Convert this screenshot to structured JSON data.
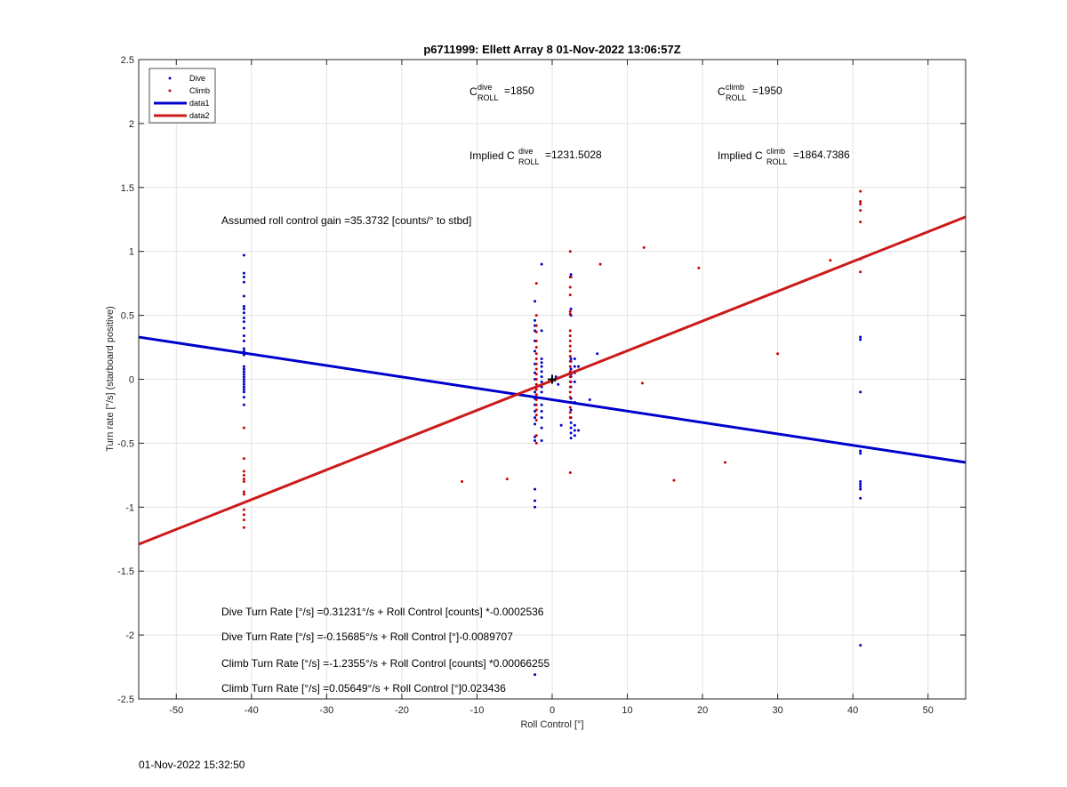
{
  "figure": {
    "timestamp": "01-Nov-2022 15:32:50"
  },
  "chart_data": {
    "type": "scatter",
    "title": "p6711999: Ellett Array 8 01-Nov-2022 13:06:57Z",
    "xlabel": "Roll Control [°]",
    "ylabel": "Turn rate [°/s] (starboard positive)",
    "xlim": [
      -55,
      55
    ],
    "ylim": [
      -2.5,
      2.5
    ],
    "xticks": [
      -50,
      -40,
      -30,
      -20,
      -10,
      0,
      10,
      20,
      30,
      40,
      50
    ],
    "yticks": [
      -2.5,
      -2,
      -1.5,
      -1,
      -0.5,
      0,
      0.5,
      1,
      1.5,
      2,
      2.5
    ],
    "xtick_labels": [
      "-50",
      "-40",
      "-30",
      "-20",
      "-10",
      "0",
      "10",
      "20",
      "30",
      "40",
      "50"
    ],
    "ytick_labels": [
      "-2.5",
      "-2",
      "-1.5",
      "-1",
      "-0.5",
      "0",
      "0.5",
      "1",
      "1.5",
      "2",
      "2.5"
    ],
    "grid": true,
    "legend": {
      "position": "top-left",
      "entries": [
        {
          "label": "Dive",
          "style": "dot",
          "color": "#0000cc"
        },
        {
          "label": "Climb",
          "style": "dot",
          "color": "#cc0000"
        },
        {
          "label": "data1",
          "style": "line",
          "color": "#0000cc"
        },
        {
          "label": "data2",
          "style": "line",
          "color": "#cc1a1a"
        }
      ]
    },
    "series": [
      {
        "name": "Dive",
        "kind": "points",
        "color": "#0000cc",
        "points": [
          [
            -41,
            0.97
          ],
          [
            -41,
            0.83
          ],
          [
            -41,
            0.8
          ],
          [
            -41,
            0.76
          ],
          [
            -41,
            0.65
          ],
          [
            -41,
            0.57
          ],
          [
            -41,
            0.55
          ],
          [
            -41,
            0.52
          ],
          [
            -41,
            0.48
          ],
          [
            -41,
            0.45
          ],
          [
            -41,
            0.4
          ],
          [
            -41,
            0.34
          ],
          [
            -41,
            0.3
          ],
          [
            -41,
            0.24
          ],
          [
            -41,
            0.22
          ],
          [
            -41,
            0.19
          ],
          [
            -41,
            0.1
          ],
          [
            -41,
            0.08
          ],
          [
            -41,
            0.06
          ],
          [
            -41,
            0.04
          ],
          [
            -41,
            0.02
          ],
          [
            -41,
            0.0
          ],
          [
            -41,
            -0.02
          ],
          [
            -41,
            -0.04
          ],
          [
            -41,
            -0.06
          ],
          [
            -41,
            -0.08
          ],
          [
            -41,
            -0.1
          ],
          [
            -41,
            -0.14
          ],
          [
            -41,
            -0.2
          ],
          [
            -2.3,
            0.61
          ],
          [
            -2.3,
            0.46
          ],
          [
            -2.3,
            0.42
          ],
          [
            -2.3,
            0.38
          ],
          [
            -2.3,
            0.3
          ],
          [
            -2.3,
            0.22
          ],
          [
            -2.3,
            0.12
          ],
          [
            -2.3,
            0.05
          ],
          [
            -2.3,
            0.0
          ],
          [
            -2.3,
            -0.1
          ],
          [
            -2.3,
            -0.15
          ],
          [
            -2.3,
            -0.2
          ],
          [
            -2.3,
            -0.25
          ],
          [
            -2.3,
            -0.3
          ],
          [
            -2.3,
            -0.35
          ],
          [
            -2.3,
            -0.45
          ],
          [
            -2.3,
            -0.48
          ],
          [
            -2.3,
            -0.86
          ],
          [
            -2.3,
            -0.95
          ],
          [
            -2.3,
            -1.0
          ],
          [
            -2.3,
            -2.31
          ],
          [
            -1.4,
            0.9
          ],
          [
            -1.4,
            0.38
          ],
          [
            -1.4,
            0.16
          ],
          [
            -1.4,
            0.13
          ],
          [
            -1.4,
            0.1
          ],
          [
            -1.4,
            0.06
          ],
          [
            -1.4,
            0.02
          ],
          [
            -1.4,
            -0.02
          ],
          [
            -1.4,
            -0.06
          ],
          [
            -1.4,
            -0.1
          ],
          [
            -1.4,
            -0.2
          ],
          [
            -1.4,
            -0.25
          ],
          [
            -1.4,
            -0.3
          ],
          [
            -1.4,
            -0.38
          ],
          [
            -1.4,
            -0.48
          ],
          [
            2.5,
            0.82
          ],
          [
            2.5,
            0.8
          ],
          [
            2.5,
            0.55
          ],
          [
            2.5,
            0.5
          ],
          [
            2.5,
            0.16
          ],
          [
            2.5,
            0.14
          ],
          [
            2.5,
            0.08
          ],
          [
            2.5,
            0.04
          ],
          [
            2.5,
            0.02
          ],
          [
            2.5,
            -0.02
          ],
          [
            2.5,
            -0.06
          ],
          [
            2.5,
            -0.15
          ],
          [
            2.5,
            -0.18
          ],
          [
            2.5,
            -0.24
          ],
          [
            2.5,
            -0.3
          ],
          [
            2.5,
            -0.34
          ],
          [
            2.5,
            -0.38
          ],
          [
            2.5,
            -0.42
          ],
          [
            2.5,
            -0.46
          ],
          [
            3.0,
            0.16
          ],
          [
            3.0,
            0.1
          ],
          [
            3.0,
            0.05
          ],
          [
            3.0,
            -0.02
          ],
          [
            3.0,
            -0.18
          ],
          [
            3.0,
            -0.36
          ],
          [
            3.0,
            -0.4
          ],
          [
            3.0,
            -0.44
          ],
          [
            3.5,
            0.1
          ],
          [
            3.5,
            -0.4
          ],
          [
            0.5,
            0.02
          ],
          [
            0.8,
            -0.04
          ],
          [
            0.3,
            -0.01
          ],
          [
            1.2,
            -0.36
          ],
          [
            5.0,
            -0.16
          ],
          [
            6.0,
            0.2
          ],
          [
            41,
            0.33
          ],
          [
            41,
            0.31
          ],
          [
            41,
            -0.1
          ],
          [
            41,
            -0.56
          ],
          [
            41,
            -0.58
          ],
          [
            41,
            -0.8
          ],
          [
            41,
            -0.82
          ],
          [
            41,
            -0.84
          ],
          [
            41,
            -0.86
          ],
          [
            41,
            -0.93
          ],
          [
            41,
            -2.08
          ]
        ]
      },
      {
        "name": "Climb",
        "kind": "points",
        "color": "#cc0000",
        "points": [
          [
            -41,
            -0.38
          ],
          [
            -41,
            -0.62
          ],
          [
            -41,
            -0.72
          ],
          [
            -41,
            -0.75
          ],
          [
            -41,
            -0.78
          ],
          [
            -41,
            -0.8
          ],
          [
            -41,
            -0.88
          ],
          [
            -41,
            -0.9
          ],
          [
            -41,
            -1.02
          ],
          [
            -41,
            -1.06
          ],
          [
            -41,
            -1.1
          ],
          [
            -41,
            -1.16
          ],
          [
            -2.1,
            0.75
          ],
          [
            -2.1,
            0.5
          ],
          [
            -2.1,
            0.42
          ],
          [
            -2.1,
            0.37
          ],
          [
            -2.1,
            0.3
          ],
          [
            -2.1,
            0.25
          ],
          [
            -2.1,
            0.2
          ],
          [
            -2.1,
            0.16
          ],
          [
            -2.1,
            0.12
          ],
          [
            -2.1,
            0.08
          ],
          [
            -2.1,
            0.04
          ],
          [
            -2.1,
            0.0
          ],
          [
            -2.1,
            -0.04
          ],
          [
            -2.1,
            -0.08
          ],
          [
            -2.1,
            -0.12
          ],
          [
            -2.1,
            -0.16
          ],
          [
            -2.1,
            -0.2
          ],
          [
            -2.1,
            -0.24
          ],
          [
            -2.1,
            -0.28
          ],
          [
            -2.1,
            -0.32
          ],
          [
            -2.1,
            -0.44
          ],
          [
            -2.1,
            -0.5
          ],
          [
            2.4,
            1.0
          ],
          [
            2.4,
            0.8
          ],
          [
            2.4,
            0.72
          ],
          [
            2.4,
            0.66
          ],
          [
            2.4,
            0.53
          ],
          [
            2.4,
            0.51
          ],
          [
            2.4,
            0.38
          ],
          [
            2.4,
            0.34
          ],
          [
            2.4,
            0.3
          ],
          [
            2.4,
            0.26
          ],
          [
            2.4,
            0.22
          ],
          [
            2.4,
            0.18
          ],
          [
            2.4,
            0.14
          ],
          [
            2.4,
            0.1
          ],
          [
            2.4,
            0.06
          ],
          [
            2.4,
            0.02
          ],
          [
            2.4,
            -0.02
          ],
          [
            2.4,
            -0.06
          ],
          [
            2.4,
            -0.1
          ],
          [
            2.4,
            -0.14
          ],
          [
            2.4,
            -0.18
          ],
          [
            2.4,
            -0.22
          ],
          [
            2.4,
            -0.26
          ],
          [
            2.4,
            -0.3
          ],
          [
            2.4,
            -0.73
          ],
          [
            6.4,
            0.9
          ],
          [
            12.2,
            1.03
          ],
          [
            19.5,
            0.87
          ],
          [
            12.0,
            -0.03
          ],
          [
            16.2,
            -0.79
          ],
          [
            23.0,
            -0.65
          ],
          [
            30.0,
            0.2
          ],
          [
            37.0,
            0.93
          ],
          [
            -12.0,
            -0.8
          ],
          [
            -6.0,
            -0.78
          ],
          [
            41,
            1.47
          ],
          [
            41,
            1.39
          ],
          [
            41,
            1.37
          ],
          [
            41,
            1.32
          ],
          [
            41,
            1.23
          ],
          [
            41,
            0.94
          ],
          [
            41,
            0.84
          ]
        ]
      },
      {
        "name": "data1",
        "kind": "line",
        "color": "#0000cc",
        "points": [
          [
            -55,
            0.33
          ],
          [
            55,
            -0.65
          ]
        ]
      },
      {
        "name": "data2",
        "kind": "line",
        "color": "#cc1a1a",
        "points": [
          [
            -55,
            -1.29
          ],
          [
            55,
            1.27
          ]
        ]
      }
    ],
    "marker": {
      "x": 0,
      "y": 0,
      "symbol": "+"
    },
    "annotations": {
      "c_dive": {
        "prefix": "C",
        "sup": "dive",
        "sub": "ROLL",
        "value": "=1850"
      },
      "c_climb": {
        "prefix": "C",
        "sup": "climb",
        "sub": "ROLL",
        "value": "=1950"
      },
      "implied_dive": {
        "prefix": "Implied C",
        "sup": "dive",
        "sub": "ROLL",
        "value": "=1231.5028"
      },
      "implied_climb": {
        "prefix": "Implied C",
        "sup": "climb",
        "sub": "ROLL",
        "value": "=1864.7386"
      },
      "gain": "Assumed roll control gain =35.3732 [counts/° to stbd]",
      "fits": [
        "Dive Turn Rate [°/s] =0.31231°/s + Roll Control [counts] *-0.0002536",
        "Dive Turn Rate [°/s] =-0.15685°/s + Roll Control [°]-0.0089707",
        "Climb Turn Rate [°/s] =-1.2355°/s + Roll Control [counts] *0.00066255",
        "Climb Turn Rate [°/s] =0.05649°/s + Roll Control [°]0.023436"
      ]
    }
  }
}
